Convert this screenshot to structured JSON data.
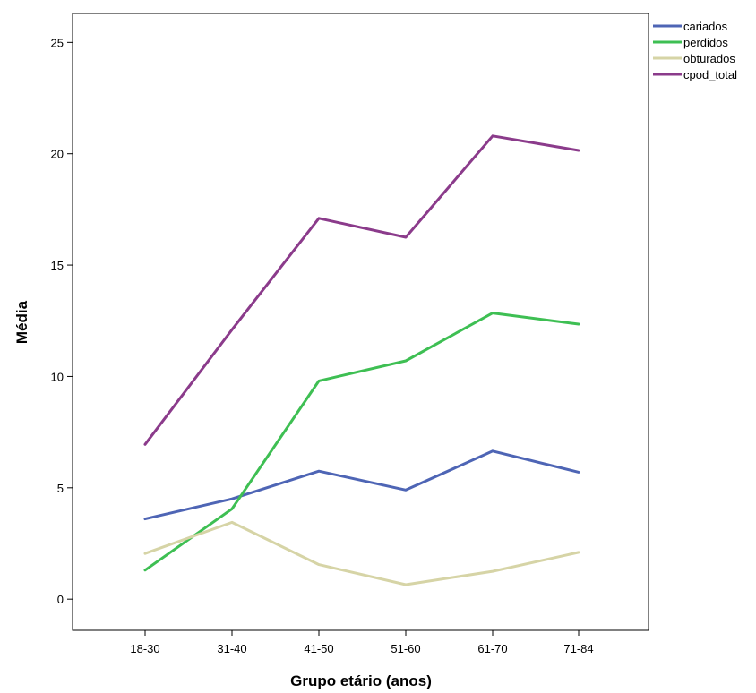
{
  "chart_data": {
    "type": "line",
    "title": "",
    "xlabel": "Grupo etário (anos)",
    "ylabel": "Média",
    "categories": [
      "18-30",
      "31-40",
      "41-50",
      "51-60",
      "61-70",
      "71-84"
    ],
    "ylim": [
      -1.4,
      26.3
    ],
    "yticks": [
      0,
      5,
      10,
      15,
      20,
      25
    ],
    "grid": false,
    "legend_position": "top-right-outside",
    "series": [
      {
        "name": "cariados",
        "color": "#4e65b5",
        "values": [
          3.6,
          4.5,
          5.75,
          4.9,
          6.65,
          5.7
        ]
      },
      {
        "name": "perdidos",
        "color": "#3ebf53",
        "values": [
          1.3,
          4.05,
          9.8,
          10.7,
          12.85,
          12.35
        ]
      },
      {
        "name": "obturados",
        "color": "#d6d4a6",
        "values": [
          2.05,
          3.45,
          1.55,
          0.65,
          1.25,
          2.1
        ]
      },
      {
        "name": "cpod_total",
        "color": "#8b3b8b",
        "values": [
          6.95,
          12.1,
          17.1,
          16.25,
          20.8,
          20.15
        ]
      }
    ]
  }
}
